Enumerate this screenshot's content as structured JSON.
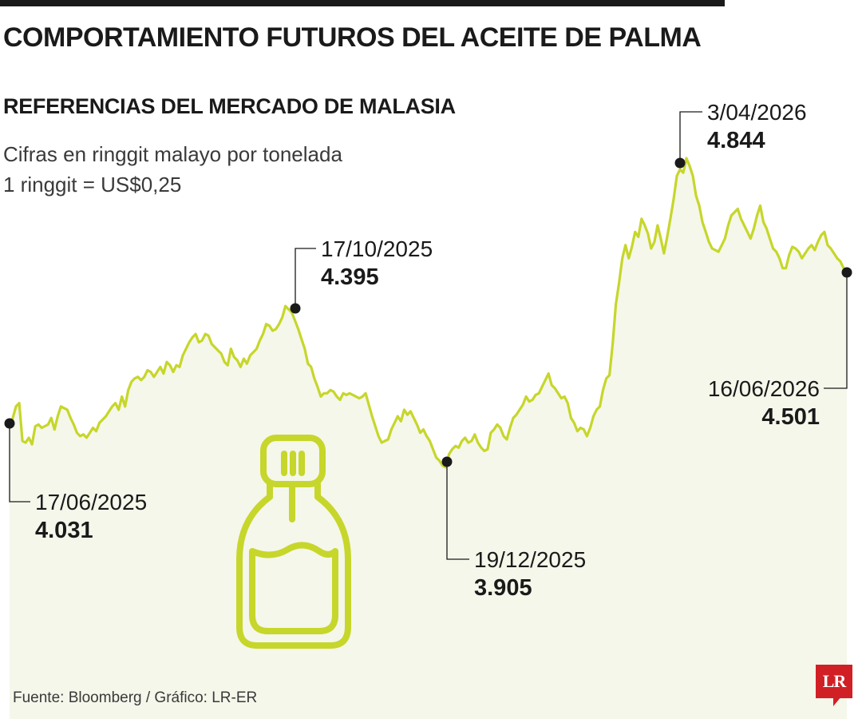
{
  "header": {
    "title": "COMPORTAMIENTO FUTUROS DEL ACEITE DE PALMA",
    "subtitle": "REFERENCIAS DEL MERCADO DE MALASIA",
    "note_unit": "Cifras en ringgit malayo por tonelada",
    "note_fx": "1 ringgit = US$0,25"
  },
  "footer": {
    "source": "Fuente: Bloomberg / Gráfico: LR-ER",
    "logo_text": "LR"
  },
  "colors": {
    "line": "#c7d62a",
    "area": "#f4f7ea",
    "text": "#1a1a1a",
    "logo": "#d11f26"
  },
  "icon": "oil-bottle-icon",
  "chart_data": {
    "type": "line",
    "title": "COMPORTAMIENTO FUTUROS DEL ACEITE DE PALMA",
    "subtitle": "REFERENCIAS DEL MERCADO DE MALASIA",
    "ylabel": "Cifras en ringgit malayo por tonelada",
    "x_range": [
      "17/06/2025",
      "16/06/2026"
    ],
    "grid": false,
    "annotations": [
      {
        "date": "17/06/2025",
        "value": 4031,
        "label": "4.031"
      },
      {
        "date": "17/10/2025",
        "value": 4395,
        "label": "4.395"
      },
      {
        "date": "19/12/2025",
        "value": 3905,
        "label": "3.905"
      },
      {
        "date": "3/04/2026",
        "value": 4844,
        "label": "4.844"
      },
      {
        "date": "16/06/2026",
        "value": 4501,
        "label": "4.501"
      }
    ],
    "series": [
      {
        "values": [
          4031,
          4055,
          4090,
          4100,
          3985,
          3980,
          3995,
          3975,
          4030,
          4035,
          4025,
          4030,
          4035,
          4055,
          4020,
          4060,
          4090,
          4085,
          4080,
          4055,
          4035,
          4010,
          4000,
          4005,
          3995,
          4010,
          4025,
          4015,
          4040,
          4050,
          4060,
          4075,
          4090,
          4100,
          4080,
          4120,
          4090,
          4140,
          4165,
          4175,
          4180,
          4170,
          4180,
          4200,
          4195,
          4180,
          4195,
          4210,
          4190,
          4225,
          4215,
          4195,
          4215,
          4210,
          4245,
          4265,
          4285,
          4300,
          4310,
          4285,
          4290,
          4310,
          4305,
          4280,
          4270,
          4260,
          4250,
          4225,
          4215,
          4265,
          4240,
          4230,
          4210,
          4235,
          4220,
          4245,
          4255,
          4265,
          4290,
          4310,
          4340,
          4335,
          4320,
          4325,
          4340,
          4360,
          4395,
          4385,
          4375,
          4350,
          4325,
          4295,
          4265,
          4220,
          4210,
          4175,
          4150,
          4120,
          4130,
          4130,
          4140,
          4135,
          4120,
          4110,
          4130,
          4125,
          4130,
          4125,
          4120,
          4115,
          4120,
          4130,
          4095,
          4060,
          4030,
          4000,
          3980,
          3985,
          3990,
          4020,
          4040,
          4060,
          4045,
          4080,
          4065,
          4075,
          4055,
          4035,
          4010,
          4020,
          4000,
          3985,
          3960,
          3935,
          3925,
          3910,
          3905,
          3945,
          3960,
          3970,
          3965,
          3985,
          3995,
          3980,
          3985,
          4005,
          3980,
          3965,
          3955,
          3960,
          4010,
          4020,
          4035,
          4025,
          4000,
          3990,
          4025,
          4055,
          4065,
          4080,
          4095,
          4120,
          4105,
          4110,
          4125,
          4130,
          4150,
          4170,
          4190,
          4155,
          4145,
          4130,
          4115,
          4120,
          4100,
          4055,
          4040,
          4015,
          4025,
          4020,
          4000,
          4025,
          4060,
          4080,
          4090,
          4140,
          4175,
          4185,
          4280,
          4400,
          4465,
          4540,
          4580,
          4540,
          4575,
          4620,
          4605,
          4660,
          4640,
          4615,
          4570,
          4590,
          4640,
          4600,
          4555,
          4605,
          4660,
          4720,
          4790,
          4810,
          4800,
          4844,
          4820,
          4790,
          4730,
          4700,
          4650,
          4620,
          4590,
          4570,
          4565,
          4560,
          4580,
          4600,
          4640,
          4670,
          4680,
          4690,
          4660,
          4640,
          4620,
          4600,
          4630,
          4670,
          4700,
          4650,
          4630,
          4600,
          4570,
          4560,
          4540,
          4510,
          4510,
          4550,
          4575,
          4570,
          4560,
          4540,
          4555,
          4570,
          4580,
          4565,
          4590,
          4610,
          4620,
          4580,
          4570,
          4555,
          4540,
          4530,
          4510,
          4501
        ]
      }
    ]
  }
}
